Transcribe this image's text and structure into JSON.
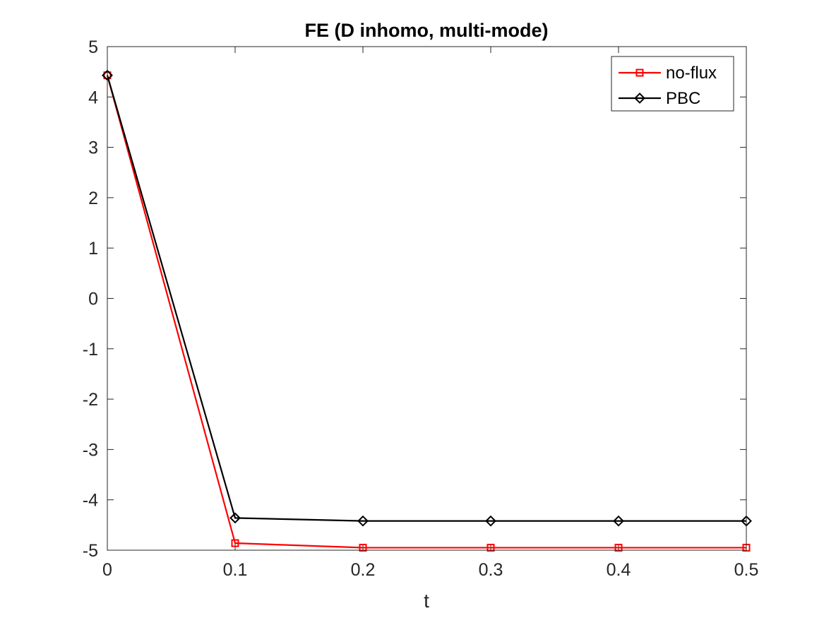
{
  "chart_data": {
    "type": "line",
    "title": "FE (D inhomo, multi-mode)",
    "xlabel": "t",
    "ylabel": "",
    "x": [
      0,
      0.1,
      0.2,
      0.3,
      0.4,
      0.5
    ],
    "xlim": [
      0,
      0.5
    ],
    "ylim": [
      -5,
      5
    ],
    "xticks": [
      0,
      0.1,
      0.2,
      0.3,
      0.4,
      0.5
    ],
    "xtick_labels": [
      "0",
      "0.1",
      "0.2",
      "0.3",
      "0.4",
      "0.5"
    ],
    "yticks": [
      -5,
      -4,
      -3,
      -2,
      -1,
      0,
      1,
      2,
      3,
      4,
      5
    ],
    "ytick_labels": [
      "-5",
      "-4",
      "-3",
      "-2",
      "-1",
      "0",
      "1",
      "2",
      "3",
      "4",
      "5"
    ],
    "grid": false,
    "legend_position": "top-right",
    "series": [
      {
        "name": "no-flux",
        "color": "#ff0000",
        "marker": "square",
        "values": [
          4.43,
          -4.86,
          -4.95,
          -4.95,
          -4.95,
          -4.95
        ]
      },
      {
        "name": "PBC",
        "color": "#000000",
        "marker": "diamond",
        "values": [
          4.43,
          -4.36,
          -4.42,
          -4.42,
          -4.42,
          -4.42
        ]
      }
    ]
  }
}
